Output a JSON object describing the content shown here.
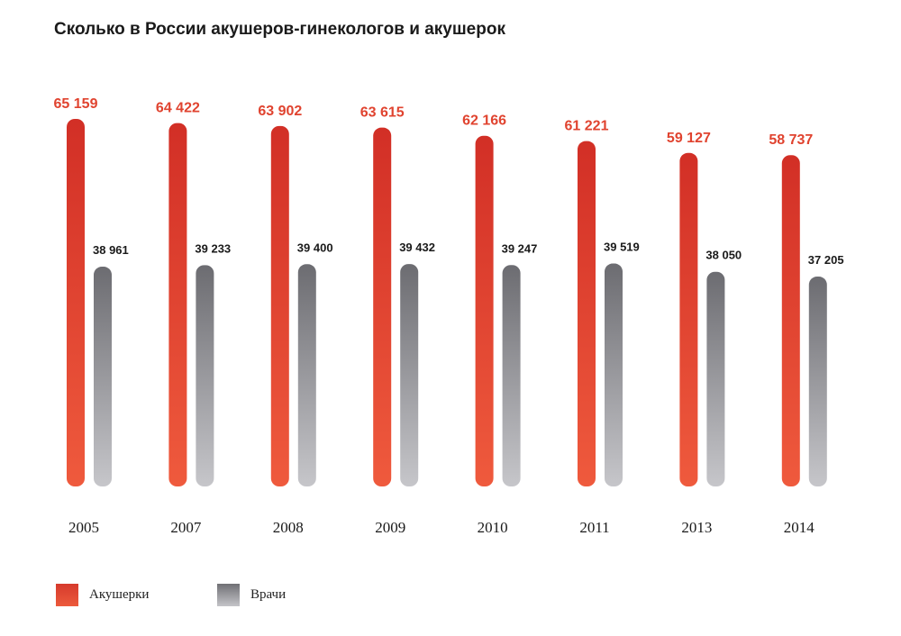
{
  "chart_data": {
    "type": "bar",
    "title": "Сколько в России акушеров-гинекологов и акушерок",
    "categories": [
      "2005",
      "2007",
      "2008",
      "2009",
      "2010",
      "2011",
      "2013",
      "2014"
    ],
    "series": [
      {
        "name": "Акушерки",
        "values": [
          65159,
          64422,
          63902,
          63615,
          62166,
          61221,
          59127,
          58737
        ],
        "labels": [
          "65 159",
          "64 422",
          "63 902",
          "63 615",
          "62 166",
          "61 221",
          "59 127",
          "58 737"
        ],
        "color": "#e0432f"
      },
      {
        "name": "Врачи",
        "values": [
          38961,
          39233,
          39400,
          39432,
          39247,
          39519,
          38050,
          37205
        ],
        "labels": [
          "38 961",
          "39 233",
          "39 400",
          "39 432",
          "39 247",
          "39 519",
          "38 050",
          "37 205"
        ],
        "color": "#7a7a7e"
      }
    ],
    "ylim": [
      0,
      65159
    ],
    "grid": false,
    "legend": "bottom-left"
  },
  "legend": {
    "midwives": "Акушерки",
    "doctors": "Врачи"
  }
}
